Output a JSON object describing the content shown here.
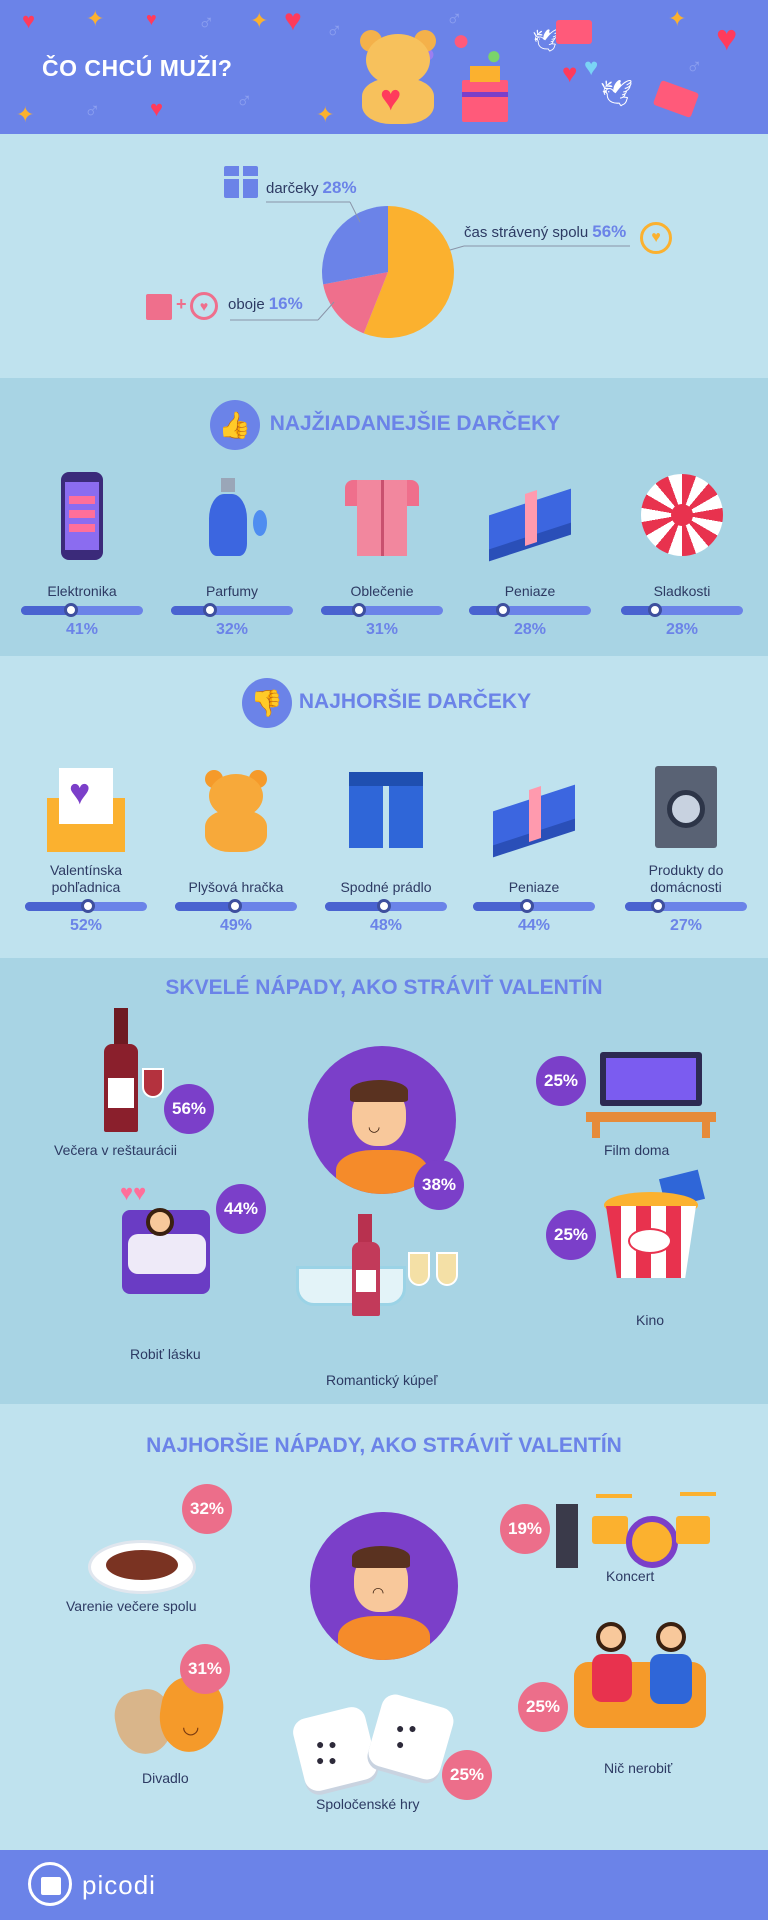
{
  "header": {
    "title": "ČO CHCÚ MUŽI?"
  },
  "chart_data": {
    "type": "pie",
    "slices": [
      {
        "label": "čas strávený spolu",
        "value": 56,
        "color": "#fbb12f"
      },
      {
        "label": "oboje",
        "value": 16,
        "color": "#ef6f8c"
      },
      {
        "label": "darčeky",
        "value": 28,
        "color": "#6b83e8"
      }
    ]
  },
  "pie_labels": [
    {
      "text": "darčeky",
      "pct": "28%"
    },
    {
      "text": "čas strávený spolu",
      "pct": "56%"
    },
    {
      "text": "oboje",
      "pct": "16%"
    }
  ],
  "best": {
    "title": "NAJŽIADANEJŠIE DARČEKY",
    "items": [
      {
        "label": "Elektronika",
        "pct": "41%",
        "value": 41
      },
      {
        "label": "Parfumy",
        "pct": "32%",
        "value": 32
      },
      {
        "label": "Oblečenie",
        "pct": "31%",
        "value": 31
      },
      {
        "label": "Peniaze",
        "pct": "28%",
        "value": 28
      },
      {
        "label": "Sladkosti",
        "pct": "28%",
        "value": 28
      }
    ]
  },
  "worst": {
    "title": "NAJHORŠIE DARČEKY",
    "items": [
      {
        "label": "Valentínska pohľadnica",
        "pct": "52%",
        "value": 52
      },
      {
        "label": "Plyšová hračka",
        "pct": "49%",
        "value": 49
      },
      {
        "label": "Spodné prádlo",
        "pct": "48%",
        "value": 48
      },
      {
        "label": "Peniaze",
        "pct": "44%",
        "value": 44
      },
      {
        "label": "Produkty do domácnosti",
        "pct": "27%",
        "value": 27
      }
    ]
  },
  "good": {
    "title": "SKVELÉ NÁPADY, AKO STRÁVIŤ VALENTÍN",
    "items": [
      {
        "label": "Večera v reštaurácii",
        "pct": "56%"
      },
      {
        "label": "Film doma",
        "pct": "25%"
      },
      {
        "label": "Robiť lásku",
        "pct": "44%"
      },
      {
        "label": "Romantický kúpeľ",
        "pct": "38%"
      },
      {
        "label": "Kino",
        "pct": "25%"
      }
    ]
  },
  "bad": {
    "title": "NAJHORŠIE NÁPADY, AKO STRÁVIŤ VALENTÍN",
    "items": [
      {
        "label": "Varenie večere spolu",
        "pct": "32%"
      },
      {
        "label": "Koncert",
        "pct": "19%"
      },
      {
        "label": "Divadlo",
        "pct": "31%"
      },
      {
        "label": "Spoločenské hry",
        "pct": "25%"
      },
      {
        "label": "Nič nerobiť",
        "pct": "25%"
      }
    ]
  },
  "footer": {
    "brand": "picodi"
  }
}
